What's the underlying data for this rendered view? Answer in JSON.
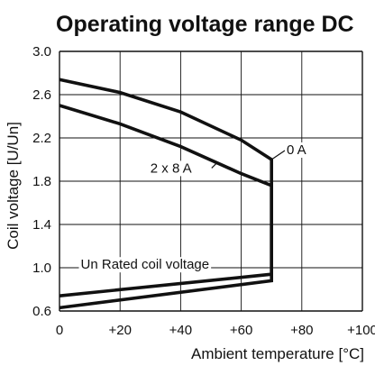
{
  "colors": {
    "line": "#111111",
    "grid": "#111111",
    "background": "#ffffff"
  },
  "chart_data": {
    "type": "line",
    "title": "Operating voltage range DC",
    "xlabel": "Ambient temperature [°C]",
    "ylabel": "Coil voltage [U/Un]",
    "xlim": [
      0,
      100
    ],
    "ylim": [
      0.6,
      3.0
    ],
    "grid": true,
    "x_ticks": [
      0,
      20,
      40,
      60,
      80,
      100
    ],
    "x_tick_labels": [
      "0",
      "+20",
      "+40",
      "+60",
      "+80",
      "+100"
    ],
    "y_ticks": [
      0.6,
      1.0,
      1.4,
      1.8,
      2.2,
      2.6,
      3.0
    ],
    "y_tick_labels": [
      "0.6",
      "1.0",
      "1.4",
      "1.8",
      "2.2",
      "2.6",
      "3.0"
    ],
    "series": [
      {
        "name": "0 A",
        "points": [
          [
            0,
            2.74
          ],
          [
            20,
            2.62
          ],
          [
            40,
            2.44
          ],
          [
            60,
            2.18
          ],
          [
            70,
            2.0
          ],
          [
            70,
            0.94
          ],
          [
            0,
            0.74
          ]
        ]
      },
      {
        "name": "2 x 8 A",
        "points": [
          [
            0,
            2.5
          ],
          [
            20,
            2.33
          ],
          [
            40,
            2.12
          ],
          [
            60,
            1.87
          ],
          [
            70,
            1.76
          ],
          [
            70,
            0.88
          ],
          [
            0,
            0.63
          ]
        ]
      }
    ],
    "annotations": [
      {
        "text": "0 A",
        "x": 75,
        "y": 2.05,
        "leader_to": [
          70,
          2.0
        ]
      },
      {
        "text": "2 x 8 A",
        "x": 30,
        "y": 1.88,
        "leader_to": [
          52,
          1.97
        ]
      },
      {
        "text": "Un Rated coil voltage",
        "x": 7,
        "y": 0.99
      }
    ]
  }
}
